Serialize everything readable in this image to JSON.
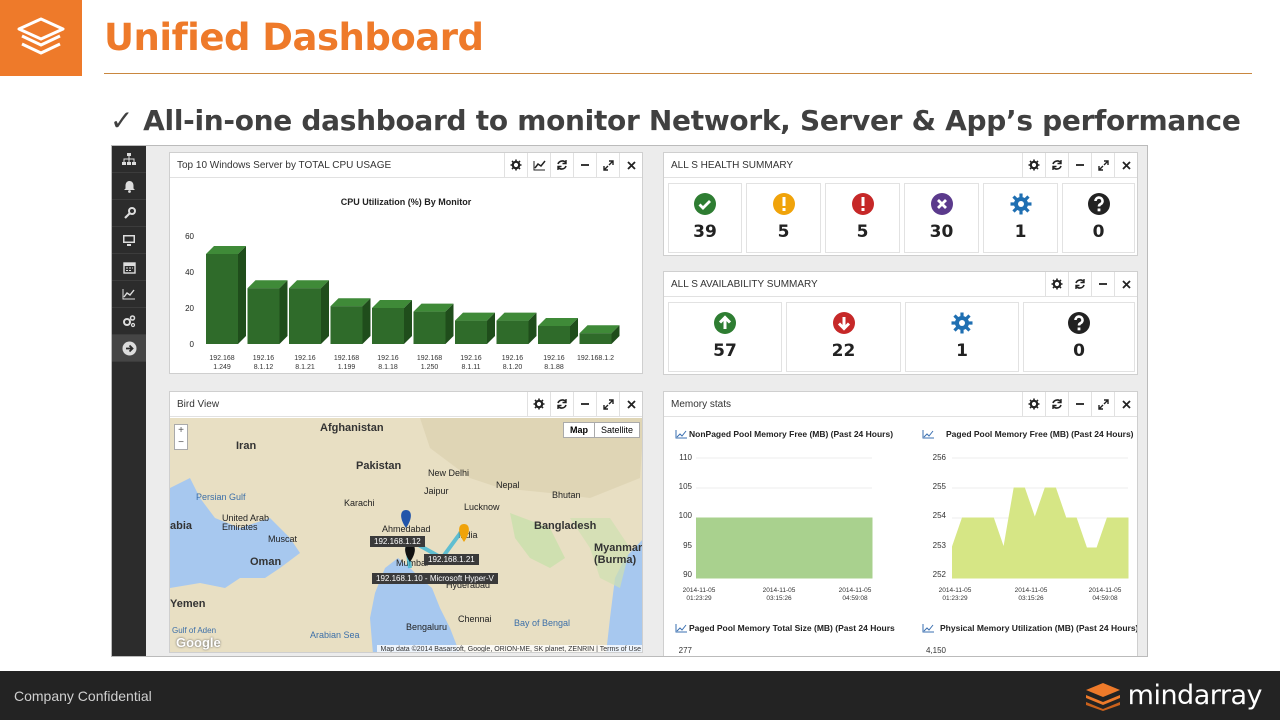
{
  "slide": {
    "title": "Unified Dashboard",
    "bullet_check": "✓",
    "bullet": "All-in-one dashboard to monitor Network, Server & App’s performance",
    "footer": "Company Confidential",
    "brand": "mindarray",
    "accent": "#ee7a2a"
  },
  "nav": {
    "icons": [
      "topology-icon",
      "bell-icon",
      "wrench-icon",
      "monitor-icon",
      "calendar-icon",
      "chart-line-icon",
      "gears-icon",
      "arrow-right-circle-icon"
    ]
  },
  "cpu_panel": {
    "title": "Top 10 Windows Server by TOTAL CPU USAGE",
    "chart_title": "CPU Utilization (%) By Monitor"
  },
  "health_panel": {
    "title": "ALL S HEALTH SUMMARY",
    "items": [
      {
        "icon": "check-circle-icon",
        "color": "#2e7d32",
        "value": "39"
      },
      {
        "icon": "warning-circle-icon",
        "color": "#f0a30a",
        "value": "5"
      },
      {
        "icon": "alert-circle-icon",
        "color": "#c62828",
        "value": "5"
      },
      {
        "icon": "x-circle-icon",
        "color": "#5b3a8c",
        "value": "30"
      },
      {
        "icon": "gear-icon",
        "color": "#1f6fb2",
        "value": "1"
      },
      {
        "icon": "question-circle-icon",
        "color": "#222222",
        "value": "0"
      }
    ]
  },
  "availability_panel": {
    "title": "ALL S AVAILABILITY SUMMARY",
    "items": [
      {
        "icon": "arrow-up-circle-icon",
        "color": "#2e7d32",
        "value": "57"
      },
      {
        "icon": "arrow-down-circle-icon",
        "color": "#c62828",
        "value": "22"
      },
      {
        "icon": "gear-icon",
        "color": "#1f6fb2",
        "value": "1"
      },
      {
        "icon": "question-circle-icon",
        "color": "#222222",
        "value": "0"
      }
    ]
  },
  "map_panel": {
    "title": "Bird View",
    "map_btn": "Map",
    "satellite_btn": "Satellite",
    "zoom_in": "+",
    "zoom_out": "−",
    "attribution": "Map data ©2014 Basarsoft, Google, ORION-ME, SK planet, ZENRIN  |  Terms of Use",
    "google": "Google",
    "places": [
      "Afghanistan",
      "Iran",
      "Pakistan",
      "New Delhi",
      "Nepal",
      "Bhutan",
      "Jaipur",
      "Lucknow",
      "Karachi",
      "Persian Gulf",
      "United Arab Emirates",
      "Muscat",
      "Oman",
      "Ahmedabad",
      "Bangladesh",
      "Myanmar (Burma)",
      "Mumbai",
      "Yemen",
      "Bay of Bengal",
      "Chennai",
      "Bengaluru",
      "Arabian Sea",
      "Gulf of Aden",
      "abia",
      "India",
      "Hyderabad"
    ],
    "tags": [
      "192.168.1.12",
      "192.168.1.21",
      "192.168.1.10 - Microsoft Hyper-V"
    ]
  },
  "memory_panel": {
    "title": "Memory stats",
    "charts": [
      {
        "title": "NonPaged Pool Memory Free (MB) (Past 24 Hours)",
        "ticks": [
          "110",
          "105",
          "100",
          "95",
          "90"
        ]
      },
      {
        "title": "Paged Pool Memory Free (MB) (Past 24 Hours)",
        "ticks": [
          "256",
          "255",
          "254",
          "253",
          "252"
        ]
      },
      {
        "title": "Paged Pool Memory Total Size (MB) (Past 24 Hours",
        "ticks": [
          "277"
        ]
      },
      {
        "title": "Physical Memory Utilization (MB) (Past 24 Hours)",
        "ticks": [
          "4,150"
        ]
      }
    ],
    "x_labels": [
      "2014-11-05 01:23:29",
      "2014-11-05 03:15:26",
      "2014-11-05 04:59:08"
    ]
  },
  "chart_data": [
    {
      "type": "bar",
      "title": "CPU Utilization (%) By Monitor",
      "categories": [
        "192.168 1.249",
        "192.16 8.1.12",
        "192.16 8.1.21",
        "192.168 1.199",
        "192.16 8.1.18",
        "192.168 1.250",
        "192.16 8.1.11",
        "192.16 8.1.20",
        "192.16 8.1.88",
        "192.168.1.2"
      ],
      "values": [
        50,
        31,
        31,
        21,
        20,
        18,
        13,
        13,
        10,
        6
      ],
      "ylim": [
        0,
        60
      ],
      "yticks": [
        "60",
        "40",
        "20",
        "0"
      ],
      "color": "#2f6b2a",
      "grid": false
    },
    {
      "type": "area",
      "title": "NonPaged Pool Memory Free (MB) (Past 24 Hours)",
      "x": [
        "2014-11-05 01:23:29",
        "2014-11-05 03:15:26",
        "2014-11-05 04:59:08"
      ],
      "values": [
        100,
        100,
        100
      ],
      "ylim": [
        90,
        110
      ],
      "color": "#a9d18e"
    },
    {
      "type": "area",
      "title": "Paged Pool Memory Free (MB) (Past 24 Hours)",
      "values": [
        253,
        254,
        254,
        254,
        254,
        253,
        255,
        255,
        254,
        255,
        255,
        254,
        254,
        253,
        253,
        254,
        254,
        254
      ],
      "ylim": [
        252,
        256
      ],
      "color": "#d6e685"
    }
  ]
}
